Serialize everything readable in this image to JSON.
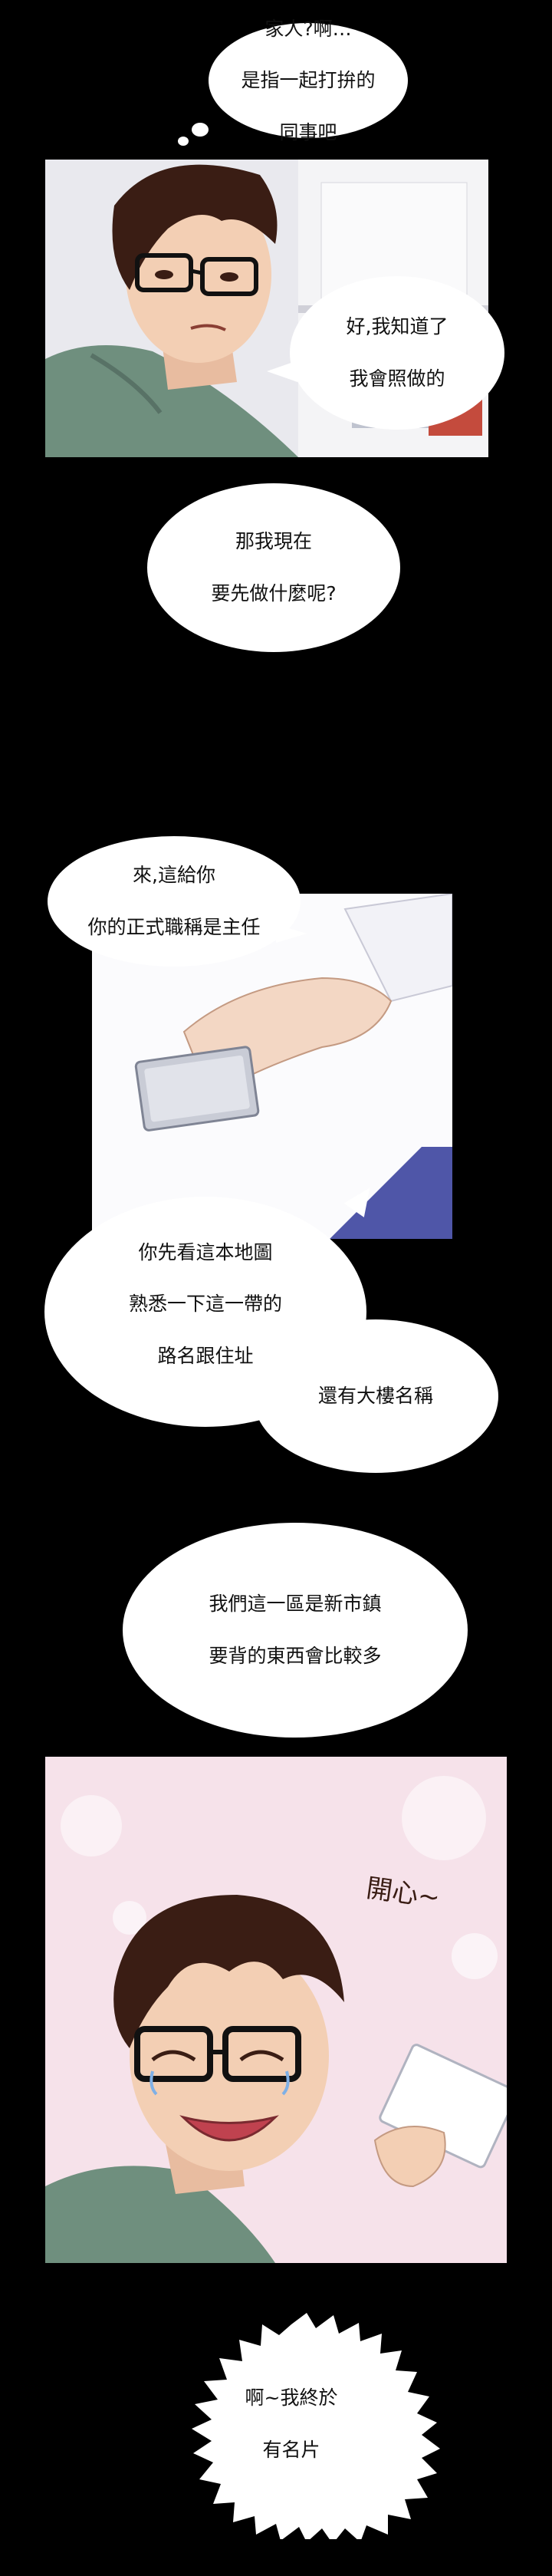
{
  "dialogue": {
    "bubble_family": [
      "家人?啊…",
      "是指一起打拚的",
      "同事吧"
    ],
    "bubble_ok": [
      "好,我知道了",
      "我會照做的"
    ],
    "bubble_what_first": [
      "那我現在",
      "要先做什麼呢?"
    ],
    "bubble_card": [
      "來,這給你",
      "你的正式職稱是主任"
    ],
    "bubble_map": [
      "你先看這本地圖",
      "熟悉一下這一帶的",
      "路名跟住址"
    ],
    "bubble_buildings": "還有大樓名稱",
    "bubble_new_town": [
      "我們這一區是新市鎮",
      "要背的東西會比較多"
    ],
    "sfx_happy": "開心~",
    "bubble_name_card": [
      "啊~我終於",
      "有名片"
    ]
  },
  "colors": {
    "background": "#000000",
    "bubble": "#ffffff",
    "shirt": "#6f8f7e",
    "hair": "#3a1d14",
    "skin": "#f3cfb4",
    "office_bg": "#e9e9ee",
    "card_silver": "#c9ccd6",
    "pink_bg": "#f6e2ea",
    "blue_box": "#4f56a8"
  }
}
